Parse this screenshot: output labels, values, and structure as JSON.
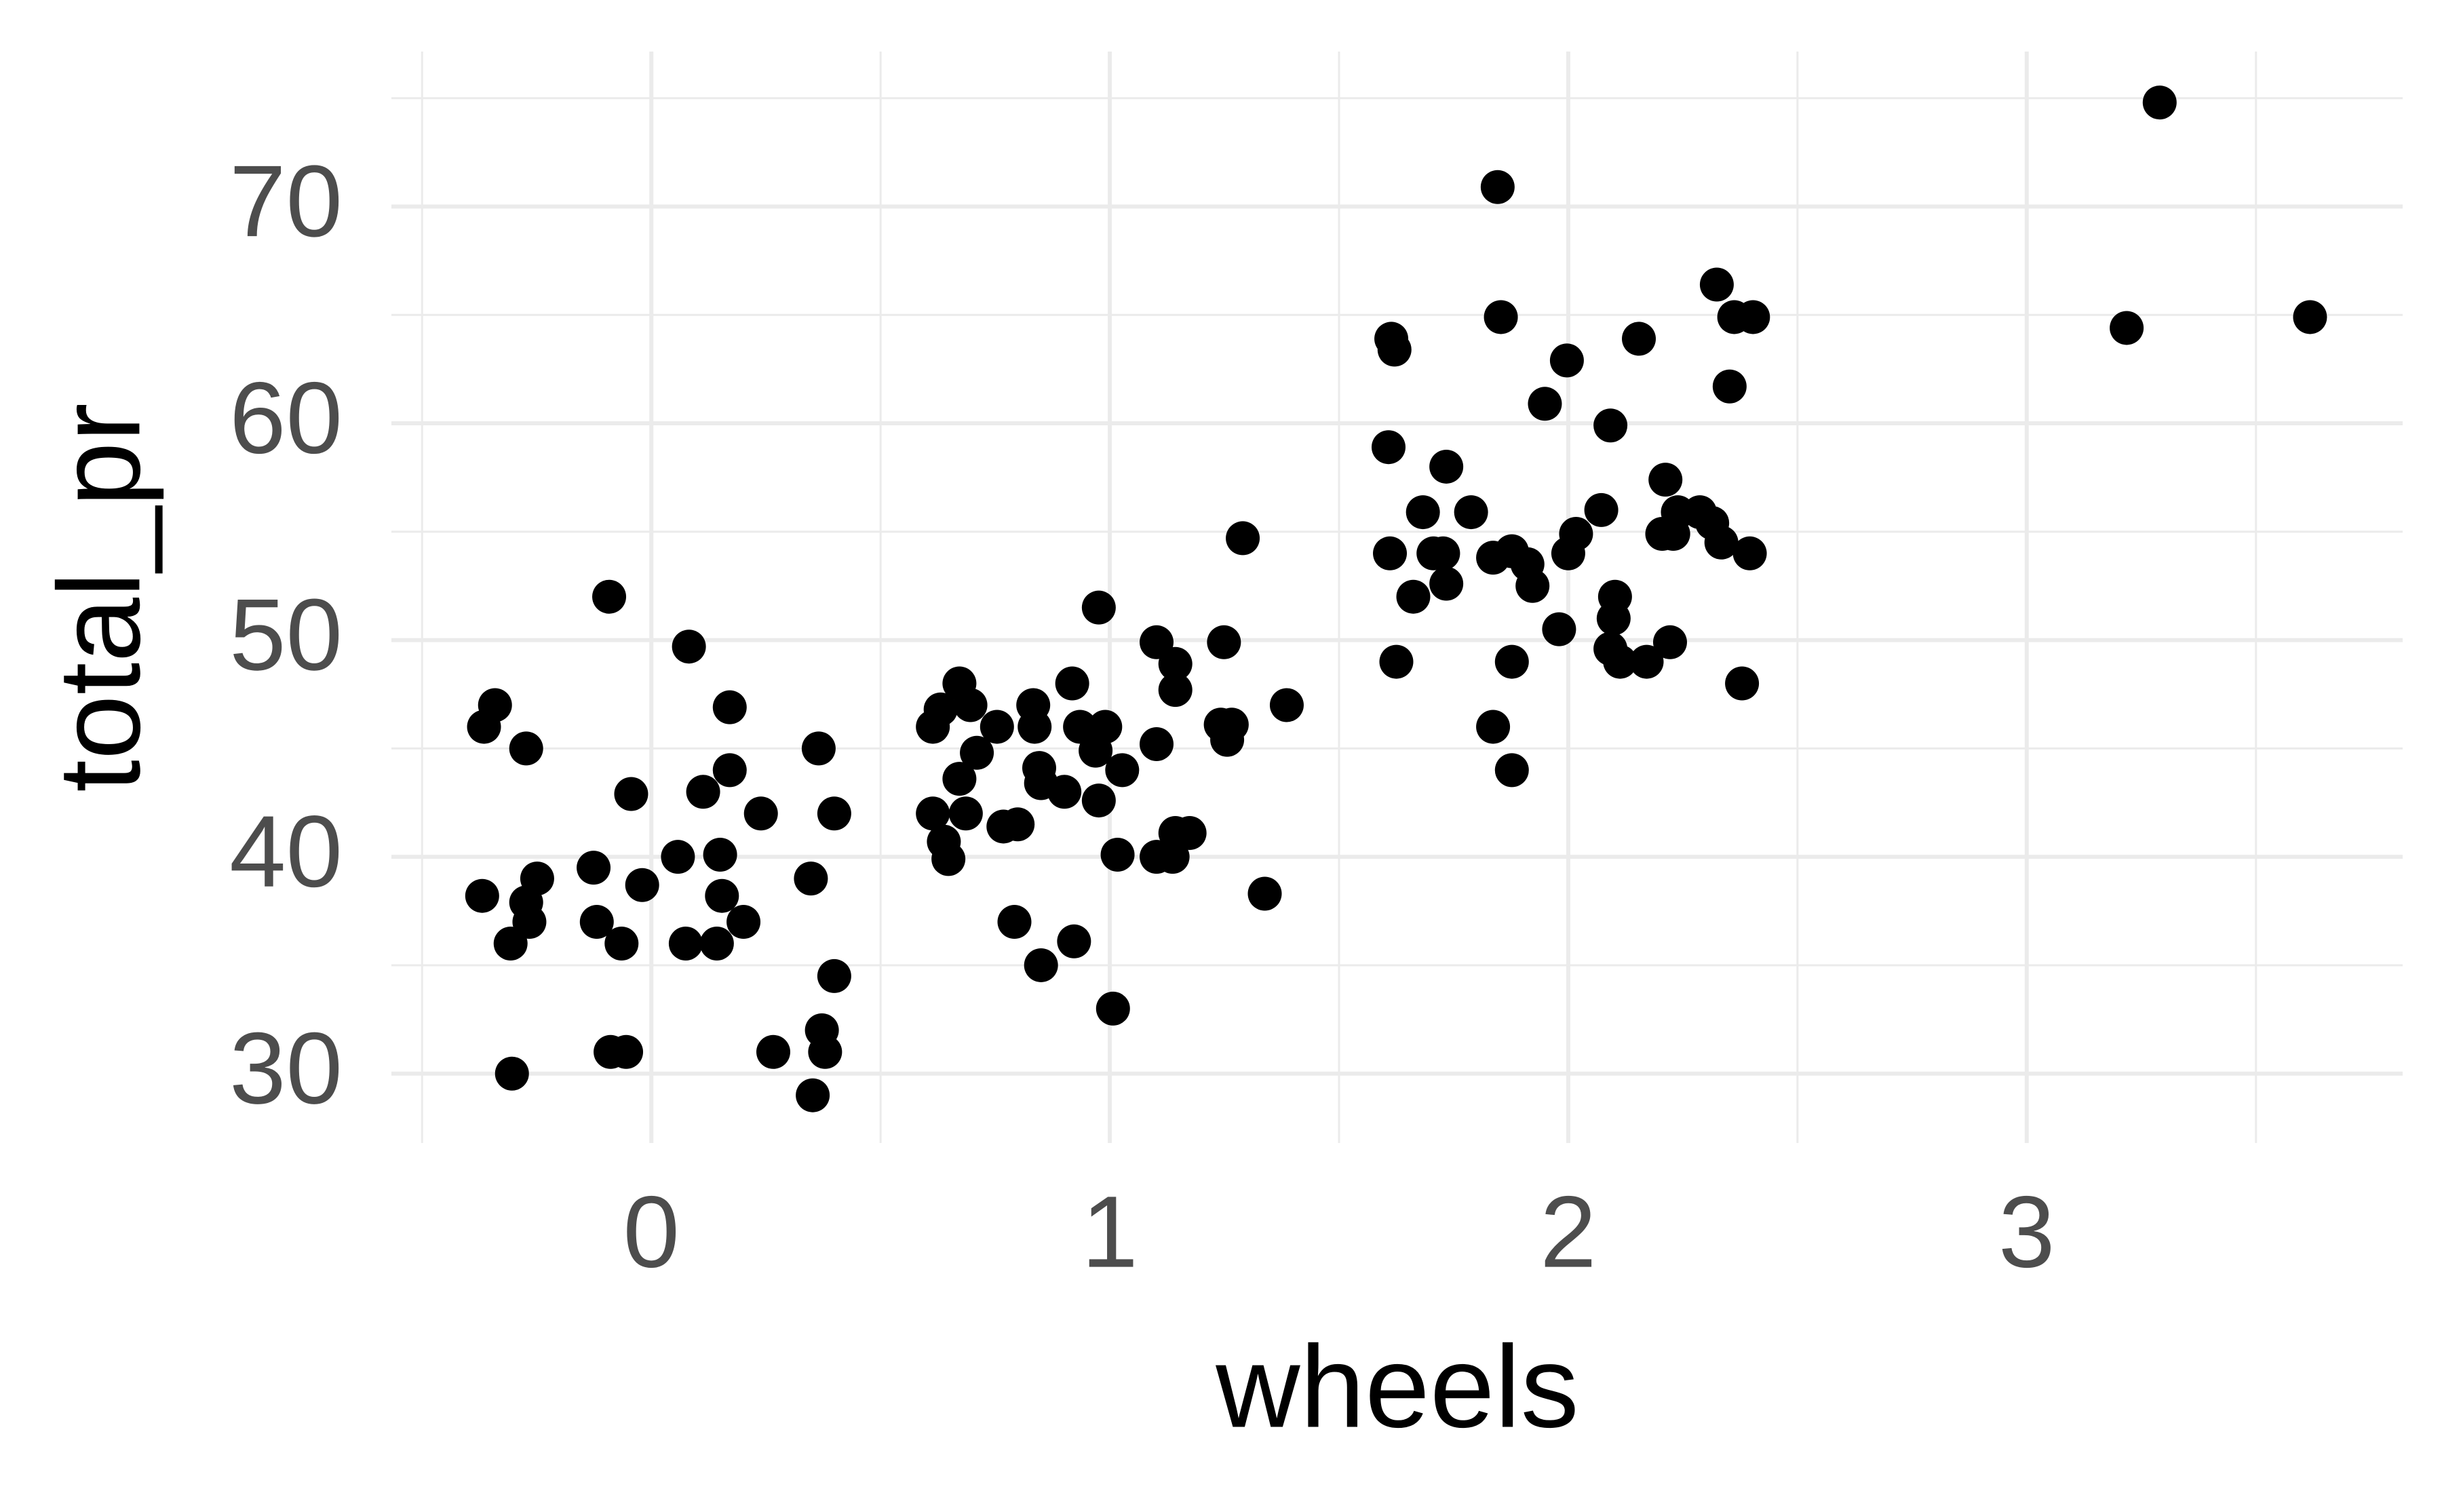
{
  "chart_data": {
    "type": "scatter",
    "x_label": "wheels",
    "y_label": "total_pr",
    "color": "#000000",
    "xlim": [
      -0.567,
      3.82
    ],
    "ylim": [
      26.8,
      77.15
    ],
    "xticks": [
      0,
      1,
      2,
      3
    ],
    "yticks": [
      30,
      40,
      50,
      60,
      70
    ],
    "x_minor_grid": [
      -0.5,
      0.5,
      1.5,
      2.5,
      3.5
    ],
    "y_minor_grid": [
      35,
      45,
      55,
      65,
      75
    ],
    "grid": true,
    "x": [
      -0.365,
      -0.341,
      -0.273,
      -0.369,
      -0.307,
      -0.273,
      -0.249,
      -0.266,
      -0.304,
      -0.092,
      -0.126,
      -0.119,
      -0.065,
      -0.089,
      -0.055,
      -0.044,
      -0.02,
      0.058,
      0.082,
      0.113,
      0.075,
      0.143,
      0.15,
      0.154,
      0.171,
      0.171,
      0.201,
      0.239,
      0.266,
      0.348,
      0.365,
      0.372,
      0.379,
      0.352,
      0.399,
      0.399,
      0.614,
      0.614,
      0.638,
      0.648,
      0.631,
      0.672,
      0.686,
      0.672,
      0.696,
      0.71,
      0.754,
      0.768,
      0.799,
      0.792,
      0.833,
      0.836,
      0.85,
      0.846,
      0.85,
      0.901,
      0.918,
      0.922,
      0.935,
      0.969,
      0.976,
      0.976,
      0.99,
      1.007,
      1.017,
      1.027,
      1.102,
      1.102,
      1.102,
      1.137,
      1.143,
      1.143,
      1.143,
      1.174,
      1.249,
      1.242,
      1.256,
      1.266,
      1.29,
      1.338,
      1.386,
      1.614,
      1.621,
      1.608,
      1.611,
      1.625,
      1.662,
      1.683,
      1.706,
      1.727,
      1.734,
      1.734,
      1.788,
      1.836,
      1.836,
      1.846,
      1.853,
      1.877,
      1.877,
      1.877,
      1.911,
      1.922,
      1.949,
      1.98,
      1.997,
      2.0,
      2.017,
      2.072,
      2.092,
      2.102,
      2.099,
      2.092,
      2.113,
      2.154,
      2.171,
      2.205,
      2.212,
      2.222,
      2.229,
      2.239,
      2.287,
      2.314,
      2.324,
      2.334,
      2.352,
      2.362,
      2.379,
      2.396,
      2.403,
      3.218,
      3.29,
      3.618
    ],
    "y": [
      46,
      47,
      45,
      38.2,
      36,
      37.9,
      39,
      37,
      30,
      52,
      39.5,
      37,
      36,
      31,
      31,
      42.9,
      38.7,
      40,
      49.7,
      43,
      36,
      36,
      40.1,
      38.2,
      44,
      46.9,
      37,
      42,
      31,
      39,
      45,
      32,
      31,
      29,
      42,
      34.5,
      46,
      42,
      40.7,
      39.9,
      46.8,
      48,
      42,
      43.6,
      47,
      44.8,
      46,
      41.4,
      41.5,
      37,
      47,
      46,
      35,
      44.1,
      43.4,
      43,
      48,
      36.1,
      46,
      44.9,
      51.5,
      42.6,
      46,
      33,
      40.1,
      44,
      49.9,
      45.2,
      40,
      40,
      48.9,
      47.7,
      41.1,
      41.1,
      49.9,
      46.1,
      45.4,
      46.1,
      54.7,
      38.3,
      47,
      63.9,
      63.4,
      58.9,
      54,
      49,
      52,
      55.9,
      54,
      54,
      58,
      52.6,
      55.9,
      53.8,
      46,
      70.9,
      64.9,
      54.1,
      49,
      44,
      53.5,
      52.5,
      60.9,
      50.5,
      62.9,
      54,
      54.9,
      56,
      59.9,
      52,
      51,
      49.6,
      49,
      63.9,
      49,
      54.9,
      57.4,
      49.9,
      54.9,
      55.9,
      55.9,
      55.4,
      66.4,
      54.5,
      61.7,
      64.9,
      48,
      54,
      64.9,
      64.4,
      74.8,
      64.9
    ]
  }
}
